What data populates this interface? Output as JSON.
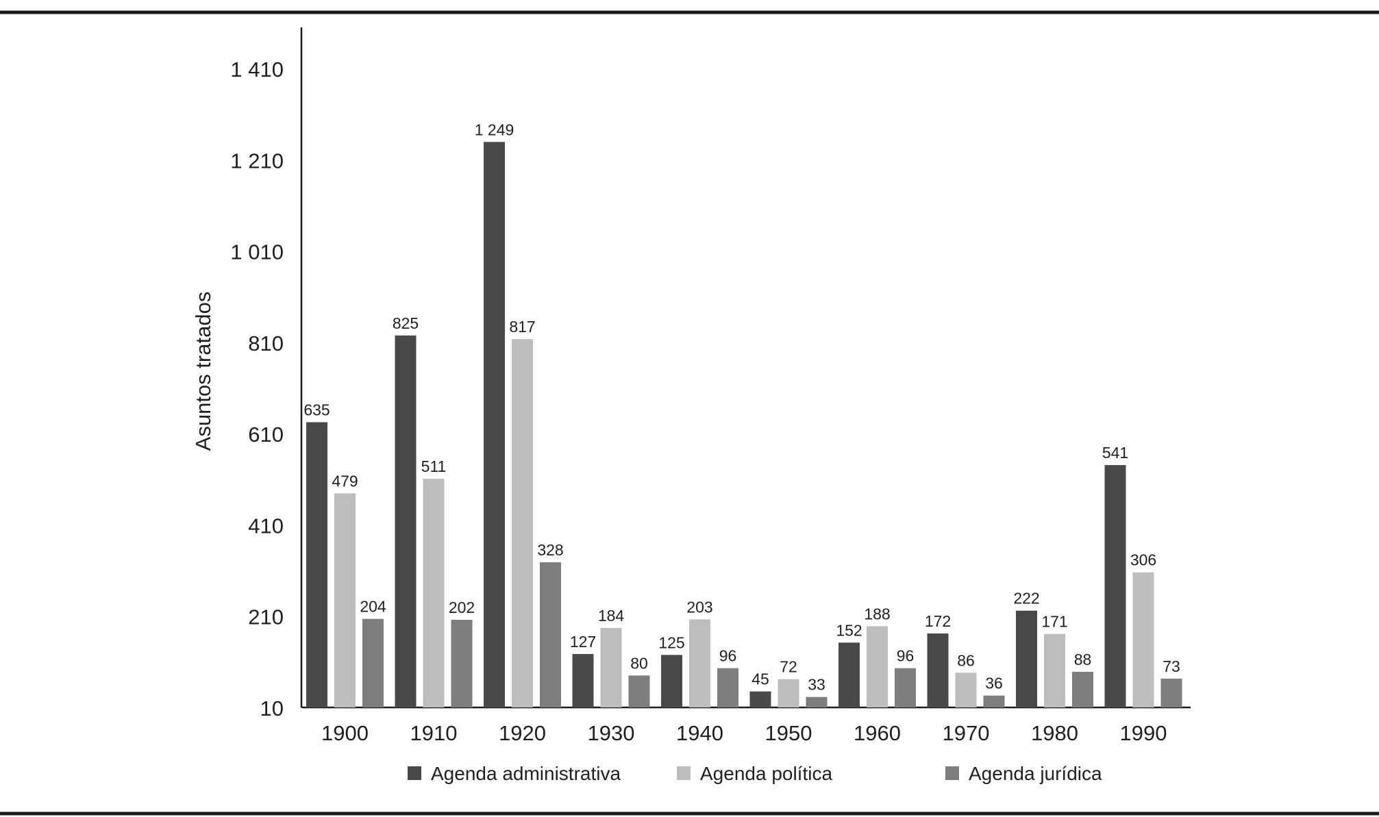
{
  "chart_data": {
    "type": "bar",
    "title": "",
    "xlabel": "",
    "ylabel": "Asuntos tratados",
    "categories": [
      "1900",
      "1910",
      "1920",
      "1930",
      "1940",
      "1950",
      "1960",
      "1970",
      "1980",
      "1990"
    ],
    "series": [
      {
        "name": "Agenda administrativa",
        "values": [
          635,
          825,
          1249,
          127,
          125,
          45,
          152,
          172,
          222,
          541
        ],
        "labels": [
          "635",
          "825",
          "1 249",
          "127",
          "125",
          "45",
          "152",
          "172",
          "222",
          "541"
        ],
        "color": "#4a4949"
      },
      {
        "name": "Agenda política",
        "values": [
          479,
          511,
          817,
          184,
          203,
          72,
          188,
          86,
          171,
          306
        ],
        "labels": [
          "479",
          "511",
          "817",
          "184",
          "203",
          "72",
          "188",
          "86",
          "171",
          "306"
        ],
        "color": "#bdbdbd"
      },
      {
        "name": "Agenda jurídica",
        "values": [
          204,
          202,
          328,
          80,
          96,
          33,
          96,
          36,
          88,
          73
        ],
        "labels": [
          "204",
          "202",
          "328",
          "80",
          "96",
          "33",
          "96",
          "36",
          "88",
          "73"
        ],
        "color": "#7d7d7d"
      }
    ],
    "y_ticks": [
      10,
      210,
      410,
      610,
      810,
      1010,
      1210,
      1410
    ],
    "y_tick_labels": [
      "10",
      "210",
      "410",
      "610",
      "810",
      "1 010",
      "1 210",
      "1 410"
    ],
    "ylim": [
      10,
      1500
    ],
    "grid": false,
    "legend_position": "bottom"
  }
}
